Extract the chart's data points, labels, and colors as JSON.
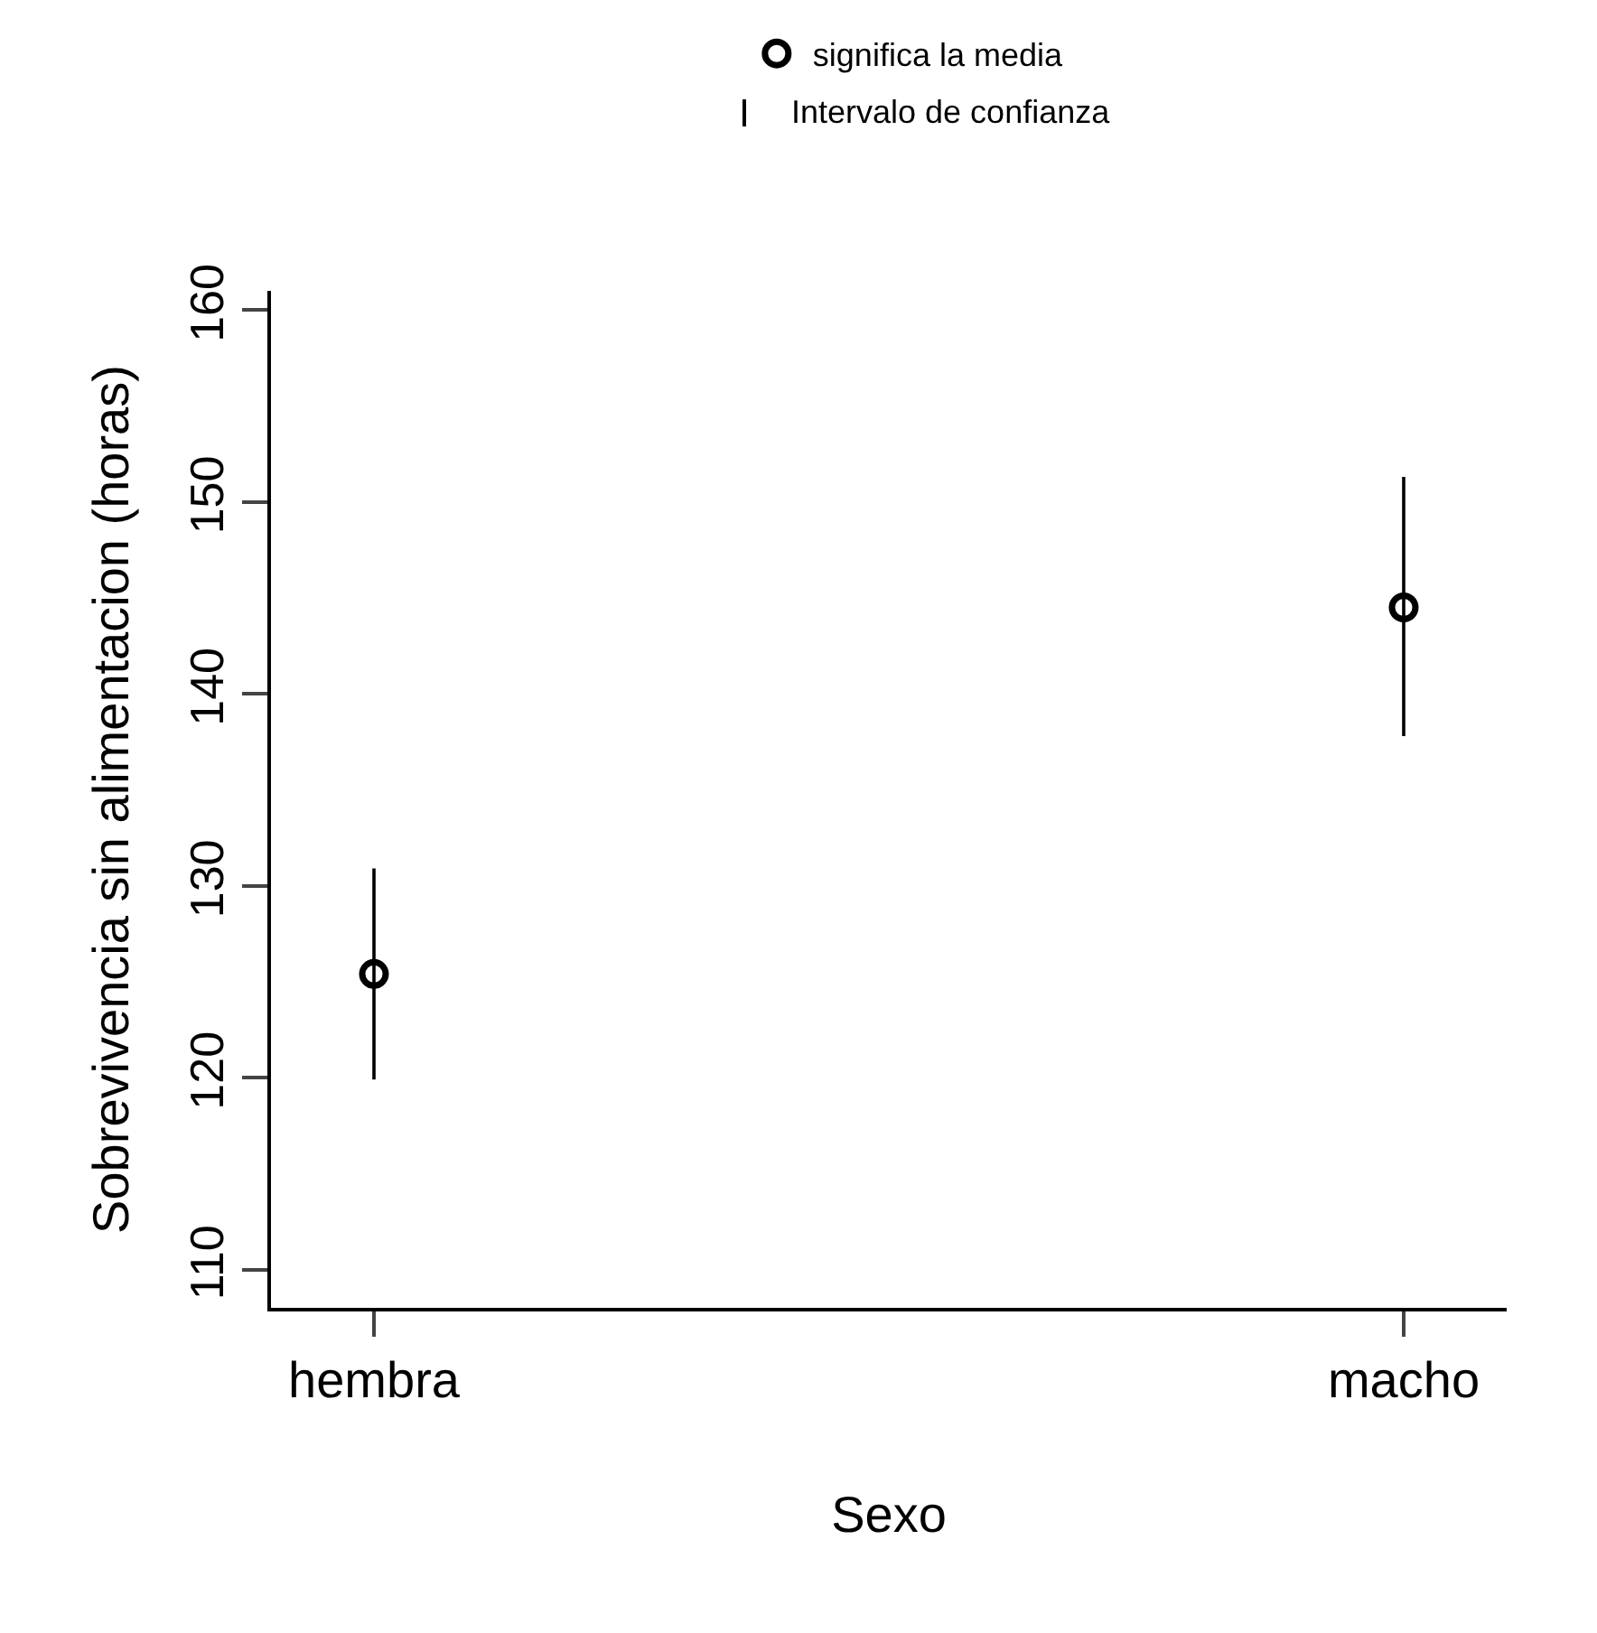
{
  "chart_data": {
    "type": "scatter",
    "xlabel": "Sexo",
    "ylabel": "Sobrevivencia sin alimentacion (horas)",
    "categories": [
      "hembra",
      "macho"
    ],
    "series": [
      {
        "name": "significa la media",
        "color": "#000000",
        "values": [
          125.4,
          144.5
        ],
        "errors": [
          [
            119.9,
            130.9
          ],
          [
            137.8,
            151.3
          ]
        ]
      }
    ],
    "annotations": [
      "Intervalo de confianza"
    ],
    "ylim": [
      108,
      161
    ],
    "yticks": [
      110,
      120,
      130,
      140,
      150,
      160
    ],
    "marker": "circle",
    "grid": false,
    "legend": "top"
  }
}
